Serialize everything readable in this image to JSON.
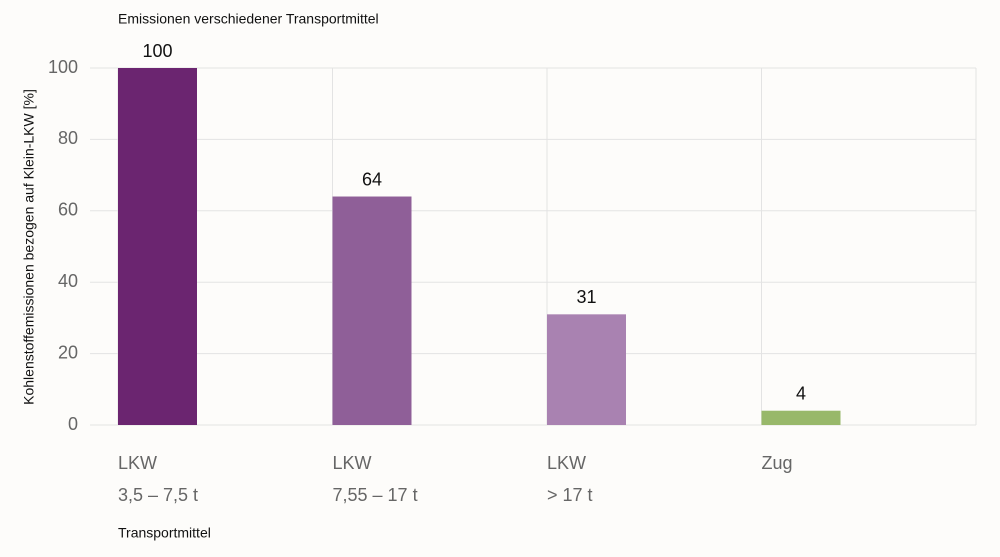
{
  "chart_data": {
    "type": "bar",
    "title": "Emissionen verschiedener Transportmittel",
    "x_label": "Transportmittel",
    "y_label": "Kohlenstoffemissionen bezogen auf Klein-LKW [%]",
    "categories": [
      [
        "LKW",
        "3,5 – 7,5 t"
      ],
      [
        "LKW",
        "7,55 – 17 t"
      ],
      [
        "LKW",
        "> 17 t"
      ],
      [
        "Zug"
      ]
    ],
    "values": [
      100,
      64,
      31,
      4
    ],
    "colors": [
      "#6b2570",
      "#8f5f98",
      "#a982b1",
      "#98b86a"
    ],
    "ylim": [
      0,
      100
    ],
    "yticks": [
      0,
      20,
      40,
      60,
      80,
      100
    ],
    "grid": true
  }
}
